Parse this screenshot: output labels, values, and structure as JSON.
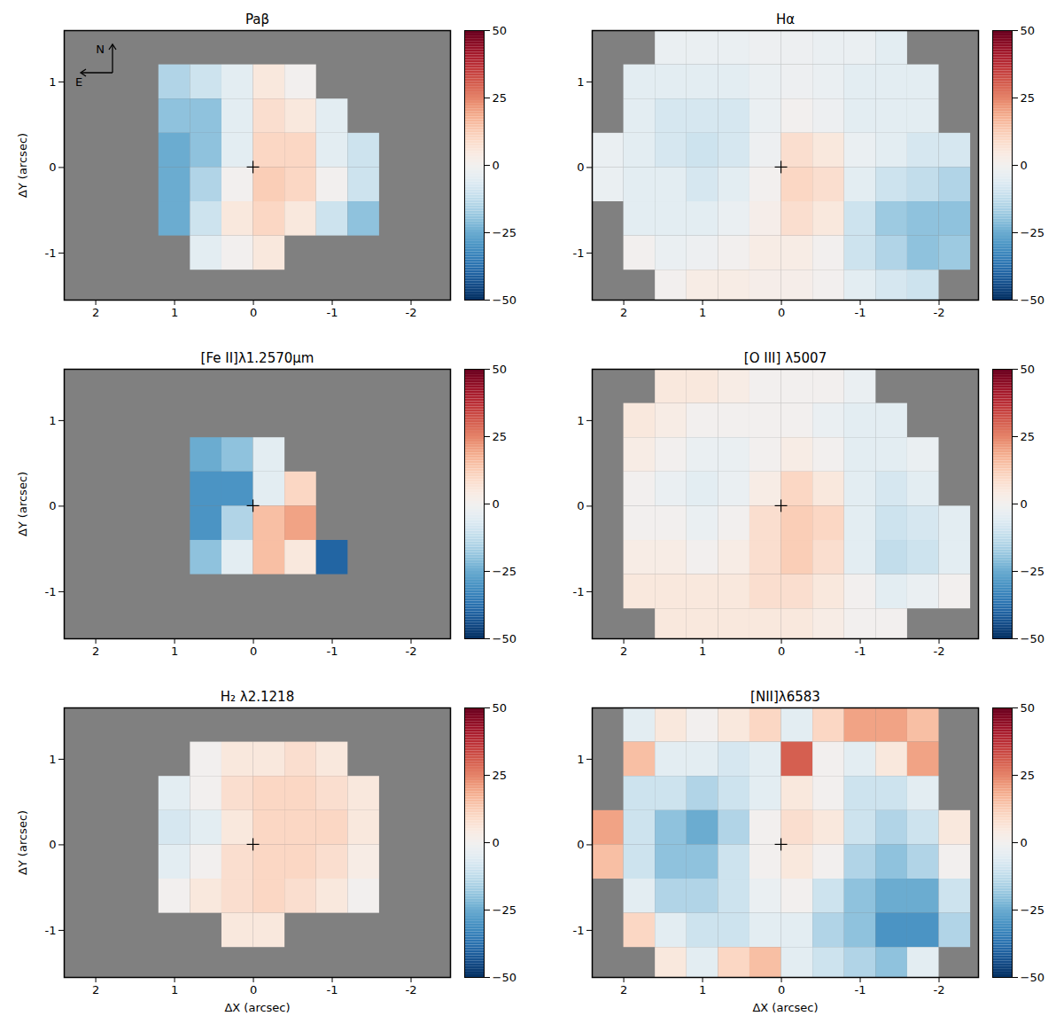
{
  "chart_data": [
    {
      "type": "heatmap",
      "title": "Paβ",
      "ylabel": "ΔY (arcsec)",
      "xlim": [
        2.4,
        -2.5
      ],
      "ylim": [
        -1.55,
        1.6
      ],
      "xticks": [
        2,
        1,
        0,
        -1,
        -2
      ],
      "yticks": [
        -1,
        0,
        1
      ],
      "annotations": [
        {
          "text": "N"
        },
        {
          "text": "E"
        }
      ],
      "nucleus": [
        0,
        0
      ],
      "colorbar": {
        "range": [
          -50,
          50
        ],
        "ticks": [
          -50,
          -25,
          0,
          25,
          50
        ]
      },
      "x": [
        2.2,
        1.8,
        1.4,
        1.0,
        0.6,
        0.2,
        -0.2,
        -0.6,
        -1.0,
        -1.4,
        -1.8,
        -2.2
      ],
      "y": [
        1.4,
        1.0,
        0.6,
        0.2,
        -0.2,
        -0.6,
        -1.0,
        -1.4
      ],
      "cells": [
        [
          null,
          null,
          null,
          null,
          null,
          null,
          null,
          null,
          null,
          null,
          null,
          null
        ],
        [
          null,
          null,
          null,
          -15,
          -10,
          -5,
          5,
          0,
          null,
          null,
          null,
          null
        ],
        [
          null,
          null,
          null,
          -20,
          -20,
          -5,
          8,
          5,
          -5,
          null,
          null,
          null
        ],
        [
          null,
          null,
          null,
          -25,
          -20,
          -5,
          10,
          10,
          -5,
          -10,
          null,
          null
        ],
        [
          null,
          null,
          null,
          -25,
          -15,
          0,
          12,
          10,
          0,
          -10,
          null,
          null
        ],
        [
          null,
          null,
          null,
          -25,
          -10,
          5,
          10,
          5,
          -10,
          -20,
          null,
          null
        ],
        [
          null,
          null,
          null,
          null,
          -5,
          0,
          5,
          null,
          null,
          null,
          null,
          null
        ],
        [
          null,
          null,
          null,
          null,
          null,
          null,
          null,
          null,
          null,
          null,
          null,
          null
        ]
      ]
    },
    {
      "type": "heatmap",
      "title": "Hα",
      "xlim": [
        2.4,
        -2.5
      ],
      "ylim": [
        -1.55,
        1.6
      ],
      "xticks": [
        2,
        1,
        0,
        -1,
        -2
      ],
      "yticks": [
        -1,
        0,
        1
      ],
      "nucleus": [
        0,
        0
      ],
      "colorbar": {
        "range": [
          -50,
          50
        ],
        "ticks": [
          -50,
          -25,
          0,
          25,
          50
        ]
      },
      "x": [
        2.2,
        1.8,
        1.4,
        1.0,
        0.6,
        0.2,
        -0.2,
        -0.6,
        -1.0,
        -1.4,
        -1.8,
        -2.2
      ],
      "y": [
        1.4,
        1.0,
        0.6,
        0.2,
        -0.2,
        -0.6,
        -1.0,
        -1.4
      ],
      "cells": [
        [
          null,
          null,
          -3,
          -3,
          -3,
          -2,
          -2,
          -3,
          -3,
          -5,
          null,
          null
        ],
        [
          null,
          -5,
          -5,
          -5,
          -5,
          -3,
          -2,
          -3,
          -5,
          -5,
          -5,
          null
        ],
        [
          null,
          -5,
          -8,
          -8,
          -8,
          -3,
          0,
          -2,
          -5,
          -5,
          -5,
          null
        ],
        [
          -3,
          -5,
          -8,
          -10,
          -8,
          -2,
          8,
          5,
          -3,
          -5,
          -8,
          -8
        ],
        [
          -3,
          -5,
          -5,
          -8,
          -5,
          0,
          10,
          8,
          -5,
          -10,
          -12,
          -15
        ],
        [
          null,
          -5,
          -5,
          -5,
          -3,
          2,
          8,
          5,
          -10,
          -18,
          -20,
          -20
        ],
        [
          null,
          0,
          -3,
          -2,
          0,
          3,
          3,
          0,
          -10,
          -15,
          -20,
          -18
        ],
        [
          null,
          null,
          0,
          3,
          3,
          2,
          2,
          0,
          -5,
          -8,
          -10,
          null
        ]
      ]
    },
    {
      "type": "heatmap",
      "title": "[Fe II]λ1.2570μm",
      "ylabel": "ΔY (arcsec)",
      "xlim": [
        2.4,
        -2.5
      ],
      "ylim": [
        -1.55,
        1.6
      ],
      "xticks": [
        2,
        1,
        0,
        -1,
        -2
      ],
      "yticks": [
        -1,
        0,
        1
      ],
      "nucleus": [
        0,
        0
      ],
      "colorbar": {
        "range": [
          -50,
          50
        ],
        "ticks": [
          -50,
          -25,
          0,
          25,
          50
        ]
      },
      "x": [
        2.2,
        1.8,
        1.4,
        1.0,
        0.6,
        0.2,
        -0.2,
        -0.6,
        -1.0,
        -1.4,
        -1.8,
        -2.2
      ],
      "y": [
        1.4,
        1.0,
        0.6,
        0.2,
        -0.2,
        -0.6,
        -1.0,
        -1.4
      ],
      "cells": [
        [
          null,
          null,
          null,
          null,
          null,
          null,
          null,
          null,
          null,
          null,
          null,
          null
        ],
        [
          null,
          null,
          null,
          null,
          null,
          null,
          null,
          null,
          null,
          null,
          null,
          null
        ],
        [
          null,
          null,
          null,
          null,
          -25,
          -20,
          -5,
          null,
          null,
          null,
          null,
          null
        ],
        [
          null,
          null,
          null,
          null,
          -30,
          -30,
          -5,
          10,
          null,
          null,
          null,
          null
        ],
        [
          null,
          null,
          null,
          null,
          -30,
          -15,
          15,
          20,
          null,
          null,
          null,
          null
        ],
        [
          null,
          null,
          null,
          null,
          -20,
          -5,
          15,
          5,
          -40,
          null,
          null,
          null
        ],
        [
          null,
          null,
          null,
          null,
          null,
          null,
          null,
          null,
          null,
          null,
          null,
          null
        ],
        [
          null,
          null,
          null,
          null,
          null,
          null,
          null,
          null,
          null,
          null,
          null,
          null
        ]
      ]
    },
    {
      "type": "heatmap",
      "title": "[O III] λ5007",
      "xlim": [
        2.4,
        -2.5
      ],
      "ylim": [
        -1.55,
        1.6
      ],
      "xticks": [
        2,
        1,
        0,
        -1,
        -2
      ],
      "yticks": [
        -1,
        0,
        1
      ],
      "nucleus": [
        0,
        0
      ],
      "colorbar": {
        "range": [
          -50,
          50
        ],
        "ticks": [
          -50,
          -25,
          0,
          25,
          50
        ]
      },
      "x": [
        2.2,
        1.8,
        1.4,
        1.0,
        0.6,
        0.2,
        -0.2,
        -0.6,
        -1.0,
        -1.4,
        -1.8,
        -2.2
      ],
      "y": [
        1.4,
        1.0,
        0.6,
        0.2,
        -0.2,
        -0.6,
        -1.0,
        -1.4
      ],
      "cells": [
        [
          null,
          null,
          5,
          5,
          3,
          0,
          0,
          0,
          -3,
          null,
          null,
          null
        ],
        [
          null,
          5,
          3,
          0,
          0,
          0,
          0,
          -3,
          -5,
          -5,
          null,
          null
        ],
        [
          null,
          3,
          0,
          -3,
          -3,
          0,
          3,
          0,
          -5,
          -5,
          -3,
          null
        ],
        [
          null,
          0,
          -3,
          -5,
          -3,
          3,
          10,
          5,
          -5,
          -8,
          -5,
          null
        ],
        [
          null,
          0,
          0,
          -3,
          0,
          8,
          12,
          10,
          -5,
          -10,
          -8,
          -5
        ],
        [
          null,
          3,
          3,
          0,
          3,
          8,
          12,
          8,
          -5,
          -12,
          -10,
          -5
        ],
        [
          null,
          5,
          5,
          5,
          5,
          8,
          8,
          5,
          0,
          -5,
          -3,
          0
        ],
        [
          null,
          null,
          5,
          5,
          5,
          5,
          5,
          3,
          0,
          0,
          null,
          null
        ]
      ]
    },
    {
      "type": "heatmap",
      "title": "H₂ λ2.1218",
      "xlabel": "ΔX (arcsec)",
      "ylabel": "ΔY (arcsec)",
      "xlim": [
        2.4,
        -2.5
      ],
      "ylim": [
        -1.55,
        1.6
      ],
      "xticks": [
        2,
        1,
        0,
        -1,
        -2
      ],
      "yticks": [
        -1,
        0,
        1
      ],
      "nucleus": [
        0,
        0
      ],
      "colorbar": {
        "range": [
          -50,
          50
        ],
        "ticks": [
          -50,
          -25,
          0,
          25,
          50
        ]
      },
      "x": [
        2.2,
        1.8,
        1.4,
        1.0,
        0.6,
        0.2,
        -0.2,
        -0.6,
        -1.0,
        -1.4,
        -1.8,
        -2.2
      ],
      "y": [
        1.4,
        1.0,
        0.6,
        0.2,
        -0.2,
        -0.6,
        -1.0,
        -1.4
      ],
      "cells": [
        [
          null,
          null,
          null,
          null,
          null,
          null,
          null,
          null,
          null,
          null,
          null,
          null
        ],
        [
          null,
          null,
          null,
          null,
          0,
          5,
          5,
          8,
          5,
          null,
          null,
          null
        ],
        [
          null,
          null,
          null,
          -5,
          0,
          8,
          10,
          10,
          8,
          5,
          null,
          null
        ],
        [
          null,
          null,
          null,
          -8,
          -5,
          5,
          10,
          10,
          10,
          5,
          null,
          null
        ],
        [
          null,
          null,
          null,
          -5,
          0,
          8,
          10,
          10,
          8,
          3,
          null,
          null
        ],
        [
          null,
          null,
          null,
          0,
          5,
          8,
          10,
          8,
          5,
          0,
          null,
          null
        ],
        [
          null,
          null,
          null,
          null,
          null,
          5,
          5,
          null,
          null,
          null,
          null,
          null
        ],
        [
          null,
          null,
          null,
          null,
          null,
          null,
          null,
          null,
          null,
          null,
          null,
          null
        ]
      ]
    },
    {
      "type": "heatmap",
      "title": "[NII]λ6583",
      "xlabel": "ΔX (arcsec)",
      "xlim": [
        2.4,
        -2.5
      ],
      "ylim": [
        -1.55,
        1.6
      ],
      "xticks": [
        2,
        1,
        0,
        -1,
        -2
      ],
      "yticks": [
        -1,
        0,
        1
      ],
      "nucleus": [
        0,
        0
      ],
      "colorbar": {
        "range": [
          -50,
          50
        ],
        "ticks": [
          -50,
          -25,
          0,
          25,
          50
        ]
      },
      "x": [
        2.2,
        1.8,
        1.4,
        1.0,
        0.6,
        0.2,
        -0.2,
        -0.6,
        -1.0,
        -1.4,
        -1.8,
        -2.2
      ],
      "y": [
        1.4,
        1.0,
        0.6,
        0.2,
        -0.2,
        -0.6,
        -1.0,
        -1.4
      ],
      "cells": [
        [
          null,
          -5,
          5,
          0,
          5,
          10,
          -5,
          10,
          20,
          20,
          15,
          null
        ],
        [
          null,
          15,
          -5,
          -5,
          -8,
          -5,
          30,
          0,
          -5,
          5,
          20,
          null
        ],
        [
          null,
          -10,
          -10,
          -15,
          -10,
          -5,
          5,
          0,
          -10,
          -10,
          -5,
          null
        ],
        [
          20,
          -10,
          -20,
          -25,
          -15,
          0,
          8,
          5,
          -10,
          -15,
          -10,
          5
        ],
        [
          15,
          -10,
          -20,
          -20,
          -10,
          0,
          5,
          0,
          -15,
          -20,
          -15,
          0
        ],
        [
          null,
          -5,
          -15,
          -15,
          -10,
          -3,
          0,
          -10,
          -20,
          -25,
          -25,
          -10
        ],
        [
          null,
          10,
          -5,
          -10,
          -10,
          -5,
          -5,
          -15,
          -20,
          -30,
          -30,
          -15
        ],
        [
          null,
          null,
          5,
          -5,
          10,
          15,
          -5,
          -10,
          -15,
          -20,
          -5,
          null
        ]
      ]
    }
  ]
}
